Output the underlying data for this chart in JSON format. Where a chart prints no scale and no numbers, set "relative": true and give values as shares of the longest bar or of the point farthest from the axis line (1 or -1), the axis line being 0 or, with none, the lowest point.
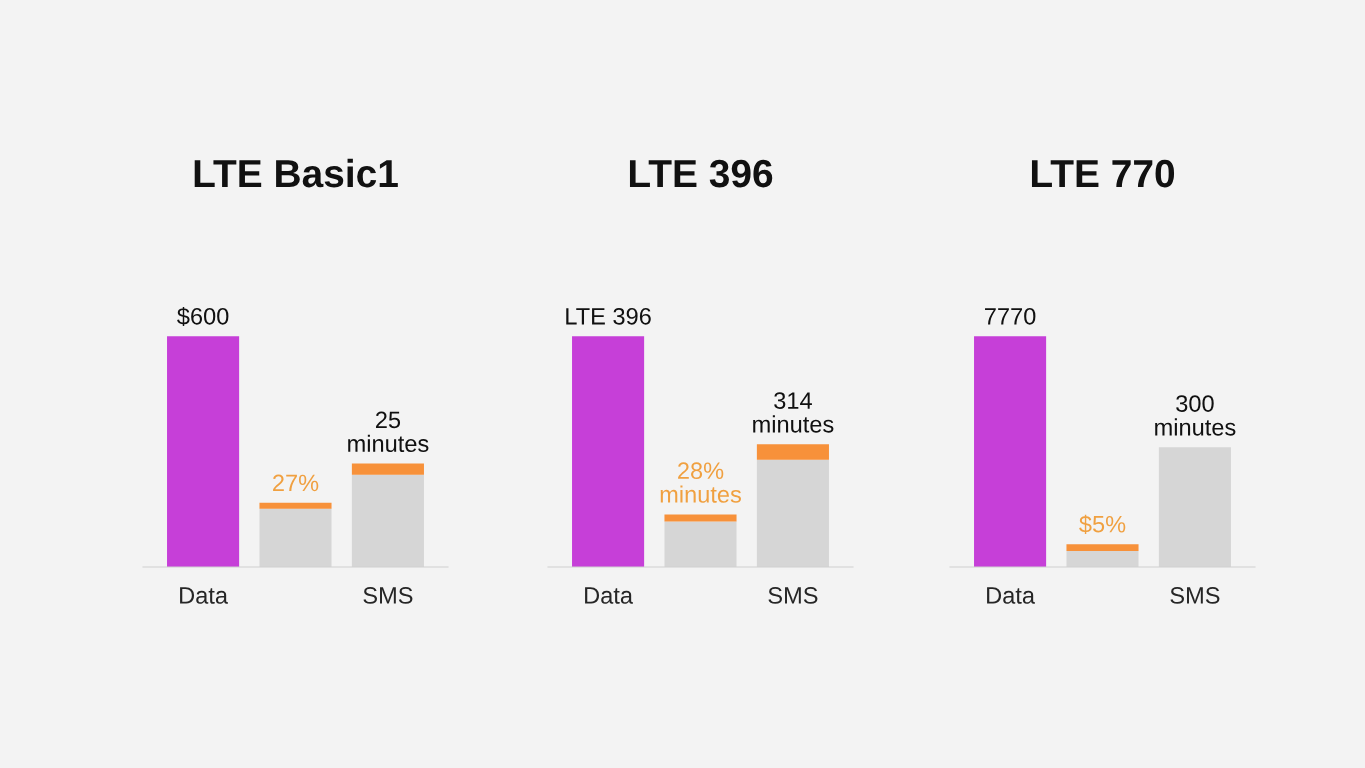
{
  "chart_data": [
    {
      "type": "bar",
      "title": "LTE Basic1",
      "categories": [
        "Data",
        null,
        "SMS"
      ],
      "stacked": true,
      "relative": true,
      "series": [
        {
          "colors": [
            "#c63fd8",
            "#d6d6d6",
            "#d6d6d6"
          ],
          "values": [
            1,
            0.252,
            0.4
          ]
        },
        {
          "colors": [
            "#f7913a",
            "#f7913a",
            "#f7913a"
          ],
          "values": [
            null,
            0.026,
            0.048
          ]
        }
      ],
      "annotations": [
        "$600",
        "27%",
        "25\nminutes"
      ]
    },
    {
      "type": "bar",
      "title": "LTE 396",
      "categories": [
        "Data",
        null,
        "SMS"
      ],
      "stacked": true,
      "relative": true,
      "series": [
        {
          "colors": [
            "#c63fd8",
            "#d6d6d6",
            "#d6d6d6"
          ],
          "values": [
            1,
            0.197,
            0.465
          ]
        },
        {
          "colors": [
            "#f7913a",
            "#f7913a",
            "#f7913a"
          ],
          "values": [
            null,
            0.031,
            0.067
          ]
        }
      ],
      "annotations": [
        "LTE 396",
        "28%\nminutes",
        "314\nminutes"
      ]
    },
    {
      "type": "bar",
      "title": "LTE 770",
      "categories": [
        "Data",
        null,
        "SMS"
      ],
      "stacked": true,
      "relative": true,
      "series": [
        {
          "colors": [
            "#c63fd8",
            "#d6d6d6",
            "#d6d6d6"
          ],
          "values": [
            1,
            0.069,
            0.519
          ]
        },
        {
          "colors": [
            "#f7913a",
            "#f7913a",
            "#f7913a"
          ],
          "values": [
            null,
            0.03,
            null
          ]
        }
      ],
      "annotations": [
        "7770",
        "$5%",
        "300\nminutes"
      ]
    }
  ]
}
